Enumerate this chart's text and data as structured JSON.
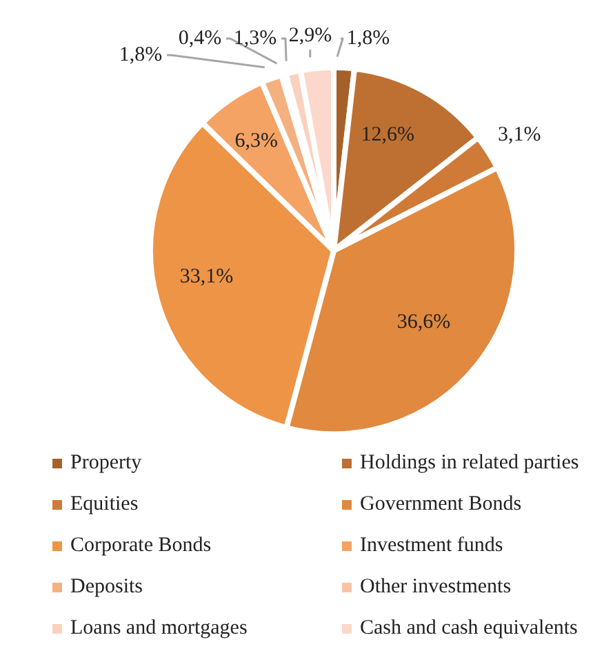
{
  "chart_data": {
    "type": "pie",
    "categories": [
      "Property",
      "Holdings in related parties",
      "Equities",
      "Government Bonds",
      "Corporate Bonds",
      "Investment funds",
      "Deposits",
      "Other investments",
      "Loans and mortgages",
      "Cash and cash equivalents"
    ],
    "values": [
      1.8,
      12.6,
      3.1,
      36.6,
      33.1,
      6.3,
      1.8,
      0.4,
      1.3,
      2.9
    ],
    "value_labels": [
      "1,8%",
      "12,6%",
      "3,1%",
      "36,6%",
      "33,1%",
      "6,3%",
      "1,8%",
      "0,4%",
      "1,3%",
      "2,9%"
    ],
    "colors": [
      "#a6612a",
      "#bd7032",
      "#d07a38",
      "#e0893f",
      "#ee9446",
      "#f4a365",
      "#f5b080",
      "#f8c4a6",
      "#fad1bf",
      "#fbd8cb"
    ],
    "legend": "bottom"
  }
}
